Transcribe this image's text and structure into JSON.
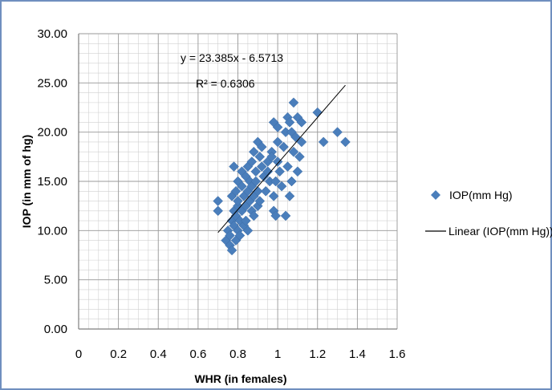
{
  "chart_data": {
    "type": "scatter",
    "xlabel": "WHR (in females)",
    "ylabel": "IOP (in mm of hg)",
    "xlim": [
      0,
      1.6
    ],
    "ylim": [
      0,
      30
    ],
    "x_ticks": [
      "0",
      "0.2",
      "0.4",
      "0.6",
      "0.8",
      "1",
      "1.2",
      "1.4",
      "1.6"
    ],
    "y_ticks": [
      "0.00",
      "5.00",
      "10.00",
      "15.00",
      "20.00",
      "25.00",
      "30.00"
    ],
    "grid": true,
    "legend_position": "right",
    "marker_color": "#4a7ebb",
    "series": [
      {
        "name": "IOP(mm Hg)",
        "points": [
          [
            0.7,
            13.0
          ],
          [
            0.7,
            12.0
          ],
          [
            0.74,
            9.0
          ],
          [
            0.75,
            10.0
          ],
          [
            0.76,
            9.5
          ],
          [
            0.76,
            8.5
          ],
          [
            0.77,
            8.0
          ],
          [
            0.77,
            11.0
          ],
          [
            0.77,
            13.5
          ],
          [
            0.78,
            16.5
          ],
          [
            0.78,
            12.0
          ],
          [
            0.78,
            10.5
          ],
          [
            0.79,
            9.0
          ],
          [
            0.79,
            11.5
          ],
          [
            0.79,
            14.0
          ],
          [
            0.8,
            10.0
          ],
          [
            0.8,
            12.5
          ],
          [
            0.8,
            15.0
          ],
          [
            0.8,
            13.0
          ],
          [
            0.81,
            11.0
          ],
          [
            0.81,
            9.5
          ],
          [
            0.82,
            14.5
          ],
          [
            0.82,
            12.0
          ],
          [
            0.82,
            16.0
          ],
          [
            0.83,
            10.5
          ],
          [
            0.83,
            13.5
          ],
          [
            0.84,
            15.5
          ],
          [
            0.84,
            12.5
          ],
          [
            0.84,
            11.0
          ],
          [
            0.85,
            14.0
          ],
          [
            0.85,
            16.5
          ],
          [
            0.85,
            10.0
          ],
          [
            0.86,
            13.0
          ],
          [
            0.86,
            15.0
          ],
          [
            0.87,
            12.0
          ],
          [
            0.87,
            17.0
          ],
          [
            0.87,
            14.5
          ],
          [
            0.88,
            11.5
          ],
          [
            0.88,
            18.0
          ],
          [
            0.88,
            13.5
          ],
          [
            0.89,
            16.0
          ],
          [
            0.89,
            15.0
          ],
          [
            0.9,
            12.5
          ],
          [
            0.9,
            19.0
          ],
          [
            0.9,
            14.0
          ],
          [
            0.91,
            17.5
          ],
          [
            0.91,
            13.0
          ],
          [
            0.92,
            16.5
          ],
          [
            0.92,
            18.5
          ],
          [
            0.93,
            15.5
          ],
          [
            0.94,
            14.0
          ],
          [
            0.95,
            17.0
          ],
          [
            0.95,
            16.0
          ],
          [
            0.96,
            15.0
          ],
          [
            0.97,
            18.0
          ],
          [
            0.97,
            17.5
          ],
          [
            0.98,
            21.0
          ],
          [
            0.98,
            13.5
          ],
          [
            0.98,
            12.0
          ],
          [
            0.99,
            11.5
          ],
          [
            0.99,
            15.0
          ],
          [
            1.0,
            19.0
          ],
          [
            1.0,
            17.0
          ],
          [
            1.0,
            20.5
          ],
          [
            1.01,
            16.0
          ],
          [
            1.02,
            14.5
          ],
          [
            1.03,
            18.5
          ],
          [
            1.04,
            11.5
          ],
          [
            1.04,
            20.0
          ],
          [
            1.05,
            21.5
          ],
          [
            1.05,
            16.5
          ],
          [
            1.06,
            13.5
          ],
          [
            1.06,
            21.0
          ],
          [
            1.07,
            20.0
          ],
          [
            1.07,
            15.0
          ],
          [
            1.08,
            23.0
          ],
          [
            1.08,
            18.0
          ],
          [
            1.09,
            19.5
          ],
          [
            1.1,
            21.5
          ],
          [
            1.1,
            16.0
          ],
          [
            1.11,
            17.5
          ],
          [
            1.12,
            19.0
          ],
          [
            1.12,
            21.0
          ],
          [
            1.2,
            22.0
          ],
          [
            1.23,
            19.0
          ],
          [
            1.3,
            20.0
          ],
          [
            1.34,
            19.0
          ]
        ]
      },
      {
        "name": "Linear (IOP(mm Hg))",
        "trendline": {
          "slope": 23.385,
          "intercept": -6.5713,
          "x_from": 0.7,
          "x_to": 1.34
        }
      }
    ],
    "annotations": {
      "equation": "y = 23.385x - 6.5713",
      "r_squared": "R² = 0.6306"
    }
  }
}
